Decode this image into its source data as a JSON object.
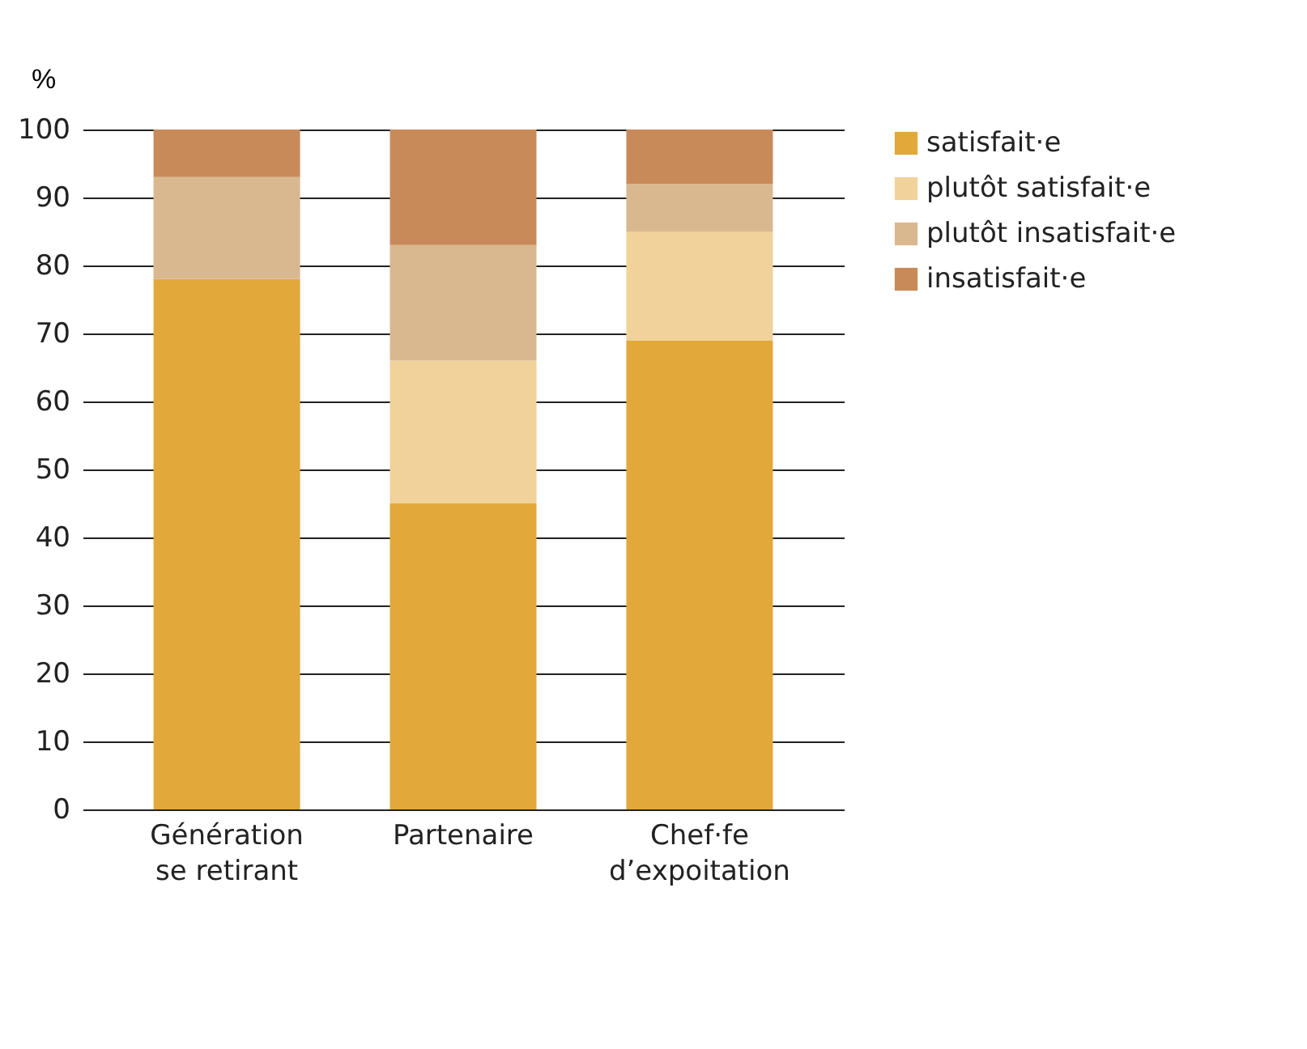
{
  "chart_data": {
    "type": "bar",
    "stacked": true,
    "ylabel": "%",
    "categories": [
      "Génération\nse retirant",
      "Partenaire",
      "Chef·fe\nd’expoitation"
    ],
    "series": [
      {
        "name": "satisfait·e",
        "color": "#e3a83a",
        "values": [
          78,
          45,
          69
        ]
      },
      {
        "name": "plutôt satisfait·e",
        "color": "#f0d29a",
        "values": [
          0,
          21,
          16
        ]
      },
      {
        "name": "plutôt insatisfait·e",
        "color": "#d9b88f",
        "values": [
          15,
          17,
          7
        ]
      },
      {
        "name": "insatisfait·e",
        "color": "#c98a5a",
        "values": [
          7,
          17,
          8
        ]
      }
    ],
    "ylim": [
      0,
      100
    ],
    "yticks": [
      0,
      10,
      20,
      30,
      40,
      50,
      60,
      70,
      80,
      90,
      100
    ],
    "grid": "y",
    "legend": "right"
  }
}
